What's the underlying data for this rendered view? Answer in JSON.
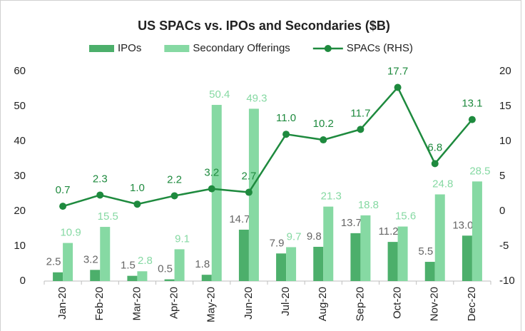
{
  "chart_data": {
    "type": "bar",
    "title": "US SPACs vs. IPOs and Secondaries ($B)",
    "categories": [
      "Jan-20",
      "Feb-20",
      "Mar-20",
      "Apr-20",
      "May-20",
      "Jun-20",
      "Jul-20",
      "Aug-20",
      "Sep-20",
      "Oct-20",
      "Nov-20",
      "Dec-20"
    ],
    "series": [
      {
        "name": "IPOs",
        "color": "#4caf6b",
        "values": [
          2.5,
          3.2,
          1.5,
          0.5,
          1.8,
          14.7,
          7.9,
          9.8,
          13.7,
          11.2,
          5.5,
          13.0
        ],
        "value_labels": [
          "2.5",
          "3.2",
          "1.5",
          "0.5",
          "1.8",
          "14.7",
          "7.9",
          "9.8",
          "13.7",
          "11.2",
          "5.5",
          "13.0"
        ]
      },
      {
        "name": "Secondary Offerings",
        "color": "#86d9a3",
        "values": [
          10.9,
          15.5,
          2.8,
          9.1,
          50.4,
          49.3,
          9.7,
          21.3,
          18.8,
          15.6,
          24.8,
          28.5
        ],
        "value_labels": [
          "10.9",
          "15.5",
          "2.8",
          "9.1",
          "50.4",
          "49.3",
          "9.7",
          "21.3",
          "18.8",
          "15.6",
          "24.8",
          "28.5"
        ]
      },
      {
        "name": "SPACs (RHS)",
        "color": "#1e8a3e",
        "type": "line",
        "axis": "y2",
        "values": [
          0.7,
          2.3,
          1.0,
          2.2,
          3.2,
          2.7,
          11.0,
          10.2,
          11.7,
          17.7,
          6.8,
          13.1
        ],
        "value_labels": [
          "0.7",
          "2.3",
          "1.0",
          "2.2",
          "3.2",
          "2.7",
          "11.0",
          "10.2",
          "11.7",
          "17.7",
          "6.8",
          "13.1"
        ]
      }
    ],
    "ylim": [
      0,
      60
    ],
    "yticks": [
      0,
      10,
      20,
      30,
      40,
      50,
      60
    ],
    "y2lim": [
      -10,
      20
    ],
    "y2ticks": [
      -10,
      -5,
      0,
      5,
      10,
      15,
      20
    ],
    "grid": false,
    "legend": "top"
  }
}
